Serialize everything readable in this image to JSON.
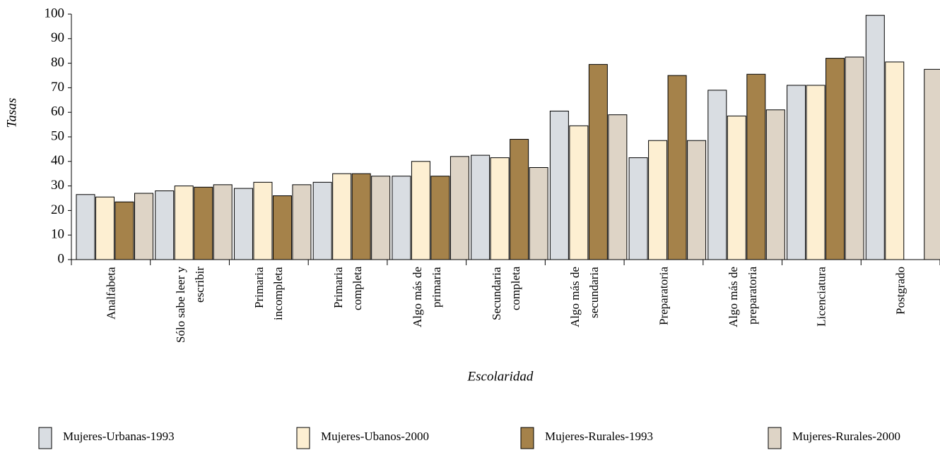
{
  "chart_data": {
    "type": "bar",
    "y_label": "Tasas",
    "x_label": "Escolaridad",
    "categories": [
      "Analfabeta",
      "Sólo sabe leer y escribir",
      "Primaria incompleta",
      "Primaria completa",
      "Algo más de primaria",
      "Secundaria completa",
      "Algo más de secundaria",
      "Preparatoria",
      "Algo más de preparatoria",
      "Licenciatura",
      "Postgrado"
    ],
    "series": [
      {
        "name": "Mujeres-Urbanas-1993",
        "color": "#d9dde2",
        "values": [
          26.5,
          28,
          29,
          31.5,
          34,
          42.5,
          60.5,
          41.5,
          69,
          71,
          99.5
        ]
      },
      {
        "name": "Mujeres-Ubanos-2000",
        "color": "#fdefd2",
        "values": [
          25.5,
          30,
          31.5,
          35,
          40,
          41.5,
          54.5,
          48.5,
          58.5,
          71,
          80.5
        ]
      },
      {
        "name": "Mujeres-Rurales-1993",
        "color": "#a5824a",
        "values": [
          23.5,
          29.5,
          26,
          35,
          34,
          49,
          79.5,
          75,
          75.5,
          82,
          null
        ]
      },
      {
        "name": "Mujeres-Rurales-2000",
        "color": "#ded4c6",
        "values": [
          27,
          30.5,
          30.5,
          34,
          42,
          37.5,
          59,
          48.5,
          61,
          82.5,
          77.5
        ]
      }
    ],
    "ylim": [
      0,
      100
    ],
    "yticks": [
      0,
      10,
      20,
      30,
      40,
      50,
      60,
      70,
      80,
      90,
      100
    ],
    "grid": false
  }
}
